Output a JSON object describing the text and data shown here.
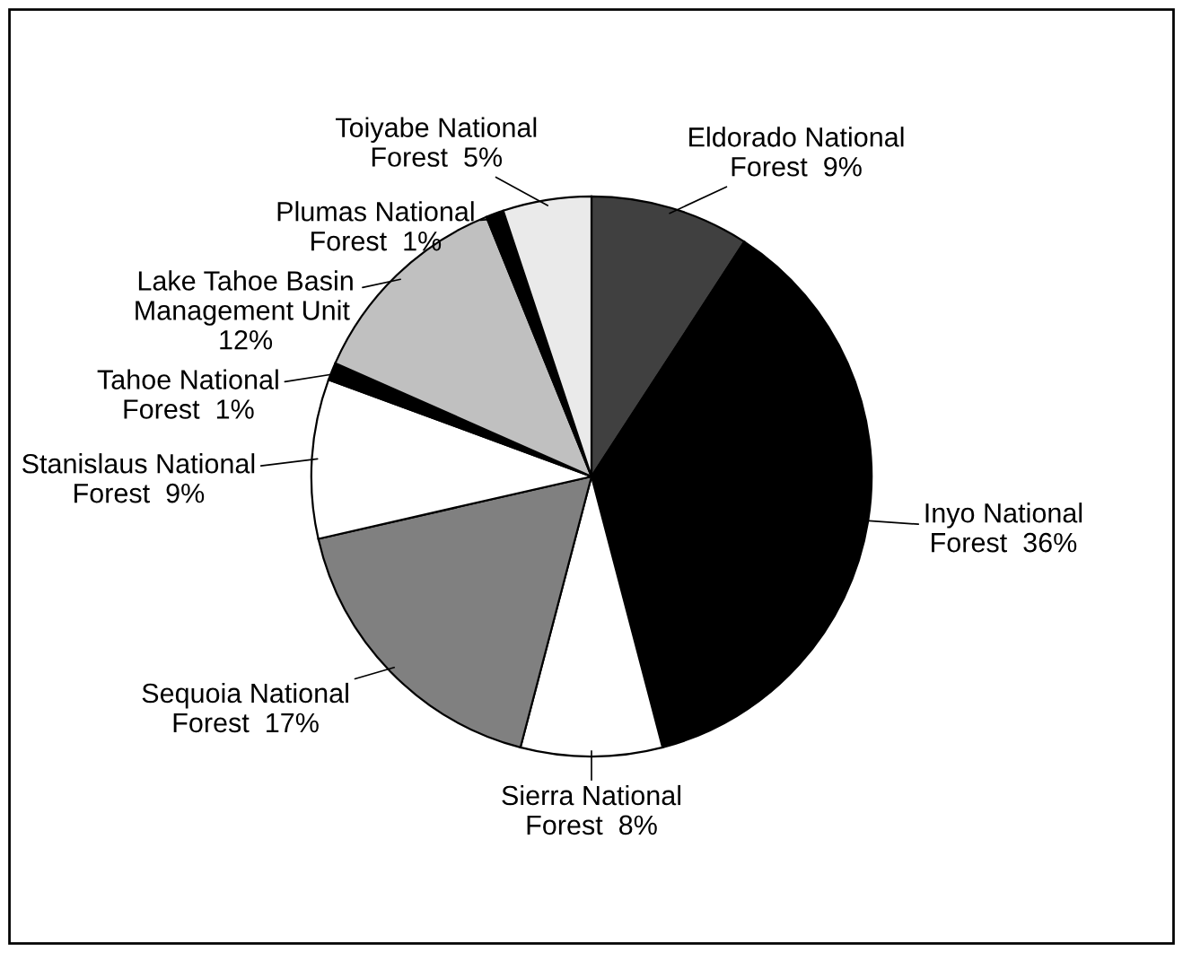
{
  "chart_data": {
    "type": "pie",
    "categories": [
      "Eldorado National Forest",
      "Inyo National Forest",
      "Sierra National Forest",
      "Sequoia National Forest",
      "Stanislaus National Forest",
      "Tahoe National Forest",
      "Lake Tahoe Basin Management Unit",
      "Plumas National Forest",
      "Toiyabe National Forest"
    ],
    "values": [
      9,
      36,
      8,
      17,
      9,
      1,
      12,
      1,
      5
    ],
    "value_labels": [
      "9%",
      "36%",
      "8%",
      "17%",
      "9%",
      "1%",
      "12%",
      "1%",
      "5%"
    ],
    "colors": [
      "#404040",
      "#000000",
      "#ffffff",
      "#808080",
      "#ffffff",
      "#000000",
      "#c0c0c0",
      "#000000",
      "#eaeaea"
    ],
    "legend": false
  }
}
